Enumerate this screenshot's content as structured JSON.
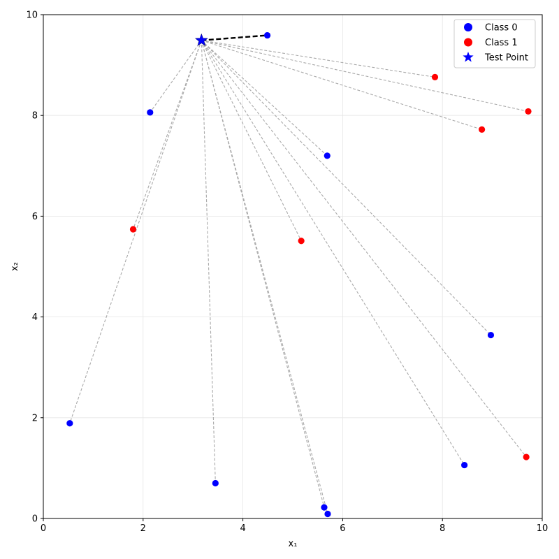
{
  "chart_data": {
    "type": "scatter",
    "title": "",
    "xlabel": "x₁",
    "ylabel": "x₂",
    "xlim": [
      0,
      10
    ],
    "ylim": [
      0,
      10
    ],
    "xticks": [
      "0",
      "2",
      "4",
      "6",
      "8",
      "10"
    ],
    "yticks": [
      "0",
      "2",
      "4",
      "6",
      "8",
      "10"
    ],
    "grid": true,
    "legend_position": "top-right",
    "series": [
      {
        "name": "Class 0",
        "color": "#0000ff",
        "marker": "circle",
        "points": [
          {
            "x": 4.49,
            "y": 9.59
          },
          {
            "x": 2.14,
            "y": 8.06
          },
          {
            "x": 5.69,
            "y": 7.2
          },
          {
            "x": 8.97,
            "y": 3.64
          },
          {
            "x": 0.53,
            "y": 1.89
          },
          {
            "x": 3.45,
            "y": 0.7
          },
          {
            "x": 8.44,
            "y": 1.06
          },
          {
            "x": 5.63,
            "y": 0.22
          },
          {
            "x": 5.7,
            "y": 0.09
          }
        ]
      },
      {
        "name": "Class 1",
        "color": "#ff0000",
        "marker": "circle",
        "points": [
          {
            "x": 7.85,
            "y": 8.76
          },
          {
            "x": 9.72,
            "y": 8.08
          },
          {
            "x": 8.79,
            "y": 7.72
          },
          {
            "x": 1.8,
            "y": 5.74
          },
          {
            "x": 5.17,
            "y": 5.51
          },
          {
            "x": 9.68,
            "y": 1.22
          }
        ]
      },
      {
        "name": "Test Point",
        "color": "#0000ff",
        "marker": "star",
        "points": [
          {
            "x": 3.17,
            "y": 9.49
          }
        ]
      }
    ],
    "connections": {
      "from": {
        "x": 3.17,
        "y": 9.49
      },
      "nearest": {
        "x": 4.49,
        "y": 9.59
      },
      "line_color": "#a9a9a9",
      "nearest_line_color": "#000000"
    }
  }
}
